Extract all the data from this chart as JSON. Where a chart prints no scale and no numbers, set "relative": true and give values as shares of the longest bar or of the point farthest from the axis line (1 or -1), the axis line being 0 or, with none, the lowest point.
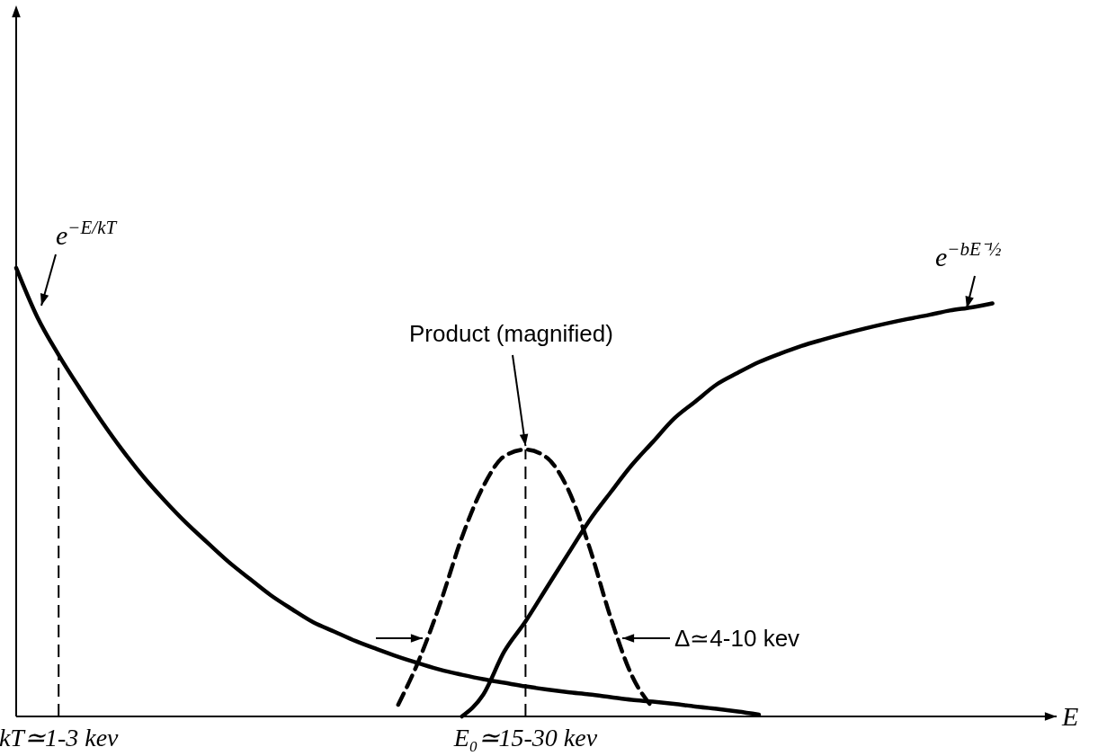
{
  "chart_data": {
    "type": "line",
    "relative": true,
    "xlabel": "E",
    "categories": [
      null,
      null,
      "kT≃1-3 kev",
      null,
      null,
      null,
      null,
      null,
      null,
      null,
      null,
      null,
      null,
      null,
      null,
      null,
      null,
      null,
      null,
      null,
      null,
      null,
      null,
      null,
      "E₀≃15-30 kev",
      null,
      null,
      null,
      null,
      null,
      null,
      null,
      null,
      null,
      null,
      null,
      null,
      null,
      null,
      null,
      null,
      null,
      null,
      null,
      null,
      null,
      null,
      null,
      null,
      null
    ],
    "tick_labels": "x",
    "legend": false,
    "grid": false,
    "series": [
      {
        "color": "#000000",
        "line_style": "solid",
        "values": [
          1.0,
          0.89,
          0.806,
          0.731,
          0.66,
          0.594,
          0.534,
          0.481,
          0.432,
          0.388,
          0.345,
          0.307,
          0.27,
          0.239,
          0.21,
          0.189,
          0.168,
          0.15,
          0.133,
          0.118,
          0.104,
          0.093,
          0.083,
          0.075,
          0.067,
          0.06,
          0.054,
          0.049,
          0.043,
          0.037,
          0.033,
          0.028,
          0.022,
          0.017,
          0.011,
          0.004,
          null,
          null,
          null,
          null,
          null,
          null,
          null,
          null,
          null,
          null,
          null,
          null,
          null,
          null
        ]
      },
      {
        "color": "#000000",
        "line_style": "solid",
        "values": [
          null,
          null,
          null,
          null,
          null,
          null,
          null,
          null,
          null,
          null,
          null,
          null,
          null,
          null,
          null,
          null,
          null,
          null,
          null,
          null,
          null,
          0,
          0.048,
          0.145,
          0.212,
          0.287,
          0.362,
          0.436,
          0.499,
          0.56,
          0.612,
          0.664,
          0.702,
          0.74,
          0.766,
          0.79,
          0.809,
          0.826,
          0.84,
          0.853,
          0.865,
          0.876,
          0.886,
          0.895,
          0.905,
          0.912,
          0.921,
          null,
          null,
          null
        ]
      },
      {
        "color": "#000000",
        "line_style": "dashed",
        "values": [
          null,
          null,
          null,
          null,
          null,
          null,
          null,
          null,
          null,
          null,
          null,
          null,
          null,
          null,
          null,
          null,
          null,
          null,
          0.026,
          0.128,
          0.255,
          0.399,
          0.512,
          0.58,
          0.595,
          0.577,
          0.507,
          0.379,
          0.222,
          0.092,
          0.019,
          null,
          null,
          null,
          null,
          null,
          null,
          null,
          null,
          null,
          null,
          null,
          null,
          null,
          null,
          null,
          null,
          null,
          null,
          null
        ]
      }
    ],
    "ref_lines": [
      {
        "axis": "x",
        "value": "kT≃1-3 kev",
        "line_style": "dashed",
        "color": "#000000"
      },
      {
        "axis": "x",
        "value": "E₀≃15-30 kev",
        "line_style": "dashed",
        "color": "#000000"
      }
    ],
    "annotations": [
      "e$^{−E/kT}$",
      "e$^{−bE⁻½}$",
      {
        "text": "Product (magnified)",
        "x": "E₀≃15-30 kev",
        "y": 0.595
      },
      "Δ≃4-10 kev"
    ]
  }
}
